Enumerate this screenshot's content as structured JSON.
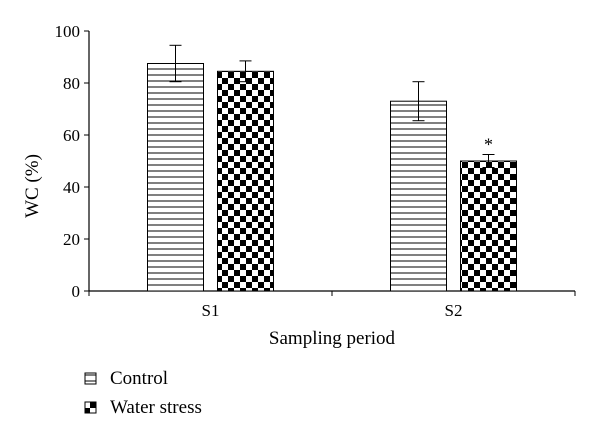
{
  "chart_data": {
    "type": "bar",
    "categories": [
      "S1",
      "S2"
    ],
    "series": [
      {
        "name": "Control",
        "values": [
          87.5,
          73
        ],
        "errors": [
          7,
          7.5
        ],
        "pattern": "horizontal-lines"
      },
      {
        "name": "Water stress",
        "values": [
          84.5,
          50
        ],
        "errors": [
          4,
          2.5
        ],
        "pattern": "checkerboard"
      }
    ],
    "annotations": [
      {
        "category": "S2",
        "series": "Water stress",
        "text": "*"
      }
    ],
    "ylim": [
      0,
      100
    ],
    "yticks": [
      0,
      20,
      40,
      60,
      80,
      100
    ],
    "xlabel": "Sampling period",
    "ylabel": "WC (%)",
    "grid": false,
    "legend_position": "bottom-left"
  }
}
